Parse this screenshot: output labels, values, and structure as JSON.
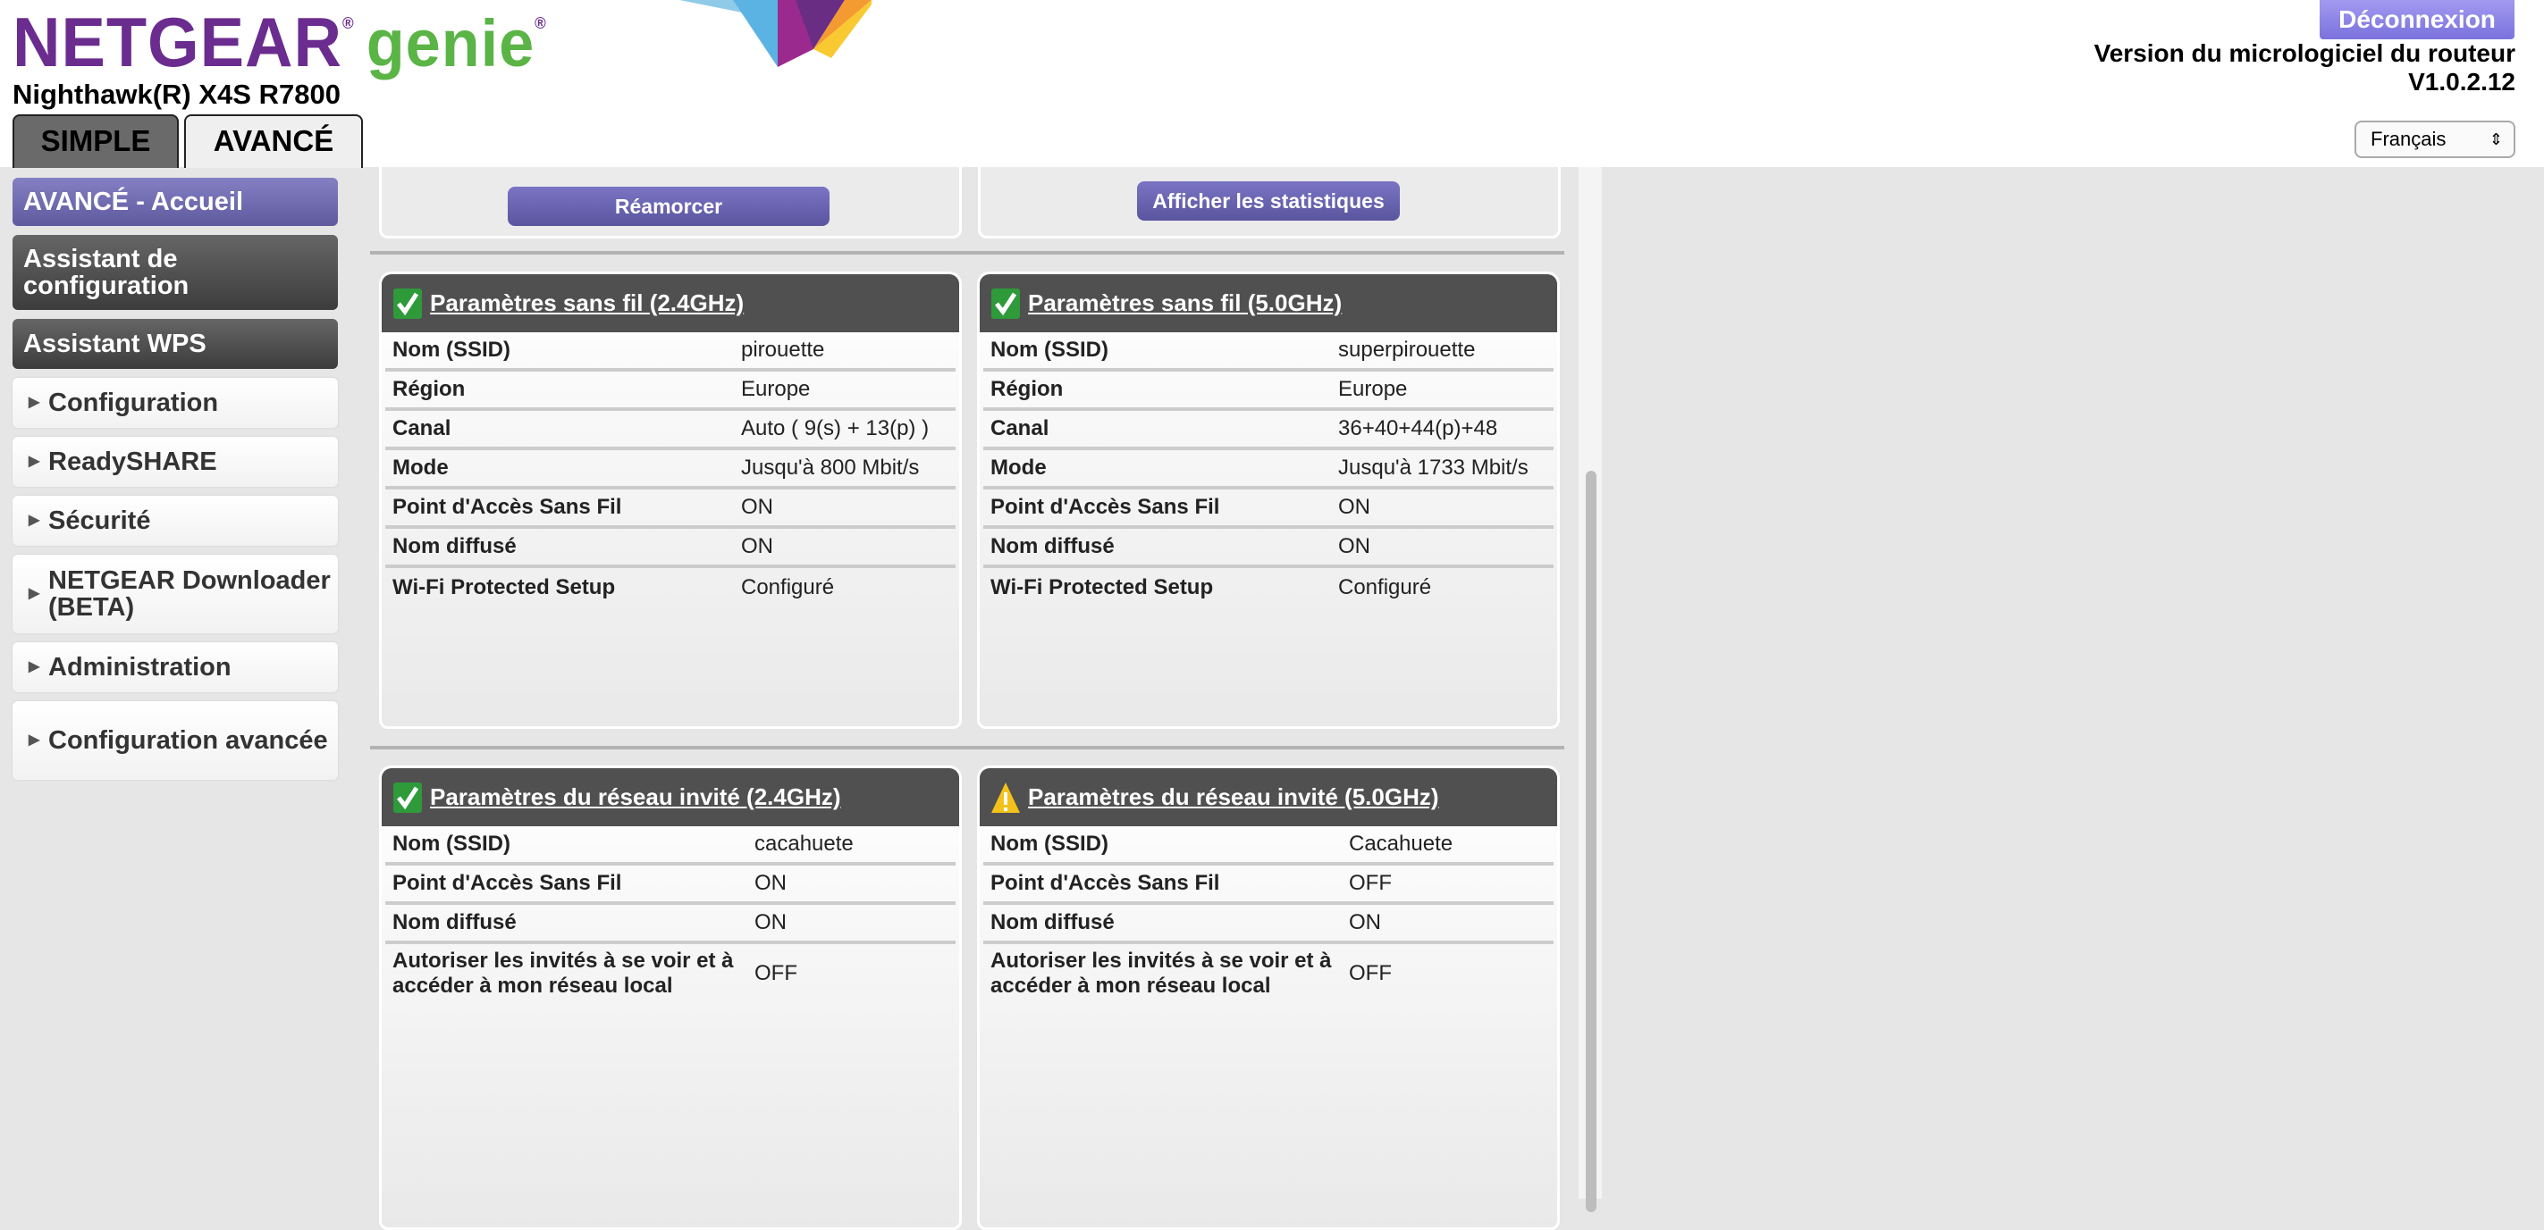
{
  "header": {
    "logo_brand": "NETGEAR",
    "logo_product": "genie",
    "model": "Nighthawk(R) X4S R7800",
    "tabs": [
      "SIMPLE",
      "AVANCÉ"
    ],
    "logout": "Déconnexion",
    "firmware_label": "Version du micrologiciel du routeur",
    "firmware_version": "V1.0.2.12",
    "language": "Français"
  },
  "sidebar": {
    "items": [
      {
        "label": "AVANCÉ - Accueil",
        "style": "active"
      },
      {
        "label": "Assistant de configuration",
        "style": "dark"
      },
      {
        "label": "Assistant WPS",
        "style": "dark"
      },
      {
        "label": "Configuration",
        "style": "light"
      },
      {
        "label": "ReadySHARE",
        "style": "light"
      },
      {
        "label": "Sécurité",
        "style": "light"
      },
      {
        "label": "NETGEAR Downloader (BETA)",
        "style": "light"
      },
      {
        "label": "Administration",
        "style": "light"
      },
      {
        "label": "Configuration avancée",
        "style": "light"
      }
    ]
  },
  "main": {
    "reboot_button": "Réamorcer",
    "stats_button": "Afficher les statistiques",
    "panels": [
      {
        "title": "Paramètres sans fil (2.4GHz)",
        "status": "ok",
        "rows": [
          [
            "Nom (SSID)",
            "pirouette"
          ],
          [
            "Région",
            "Europe"
          ],
          [
            "Canal",
            "Auto ( 9(s) + 13(p) )"
          ],
          [
            "Mode",
            "Jusqu'à 800 Mbit/s"
          ],
          [
            "Point d'Accès Sans Fil",
            "ON"
          ],
          [
            "Nom diffusé",
            "ON"
          ],
          [
            "Wi-Fi Protected Setup",
            "Configuré"
          ]
        ]
      },
      {
        "title": "Paramètres sans fil (5.0GHz)",
        "status": "ok",
        "rows": [
          [
            "Nom (SSID)",
            "superpirouette"
          ],
          [
            "Région",
            "Europe"
          ],
          [
            "Canal",
            "36+40+44(p)+48"
          ],
          [
            "Mode",
            "Jusqu'à 1733 Mbit/s"
          ],
          [
            "Point d'Accès Sans Fil",
            "ON"
          ],
          [
            "Nom diffusé",
            "ON"
          ],
          [
            "Wi-Fi Protected Setup",
            "Configuré"
          ]
        ]
      },
      {
        "title": "Paramètres du réseau invité (2.4GHz)",
        "status": "ok",
        "rows": [
          [
            "Nom (SSID)",
            "cacahuete"
          ],
          [
            "Point d'Accès Sans Fil",
            "ON"
          ],
          [
            "Nom diffusé",
            "ON"
          ],
          [
            "Autoriser les invités à se voir et à accéder à mon réseau local",
            "OFF"
          ]
        ]
      },
      {
        "title": "Paramètres du réseau invité (5.0GHz)",
        "status": "warning",
        "rows": [
          [
            "Nom (SSID)",
            "Cacahuete"
          ],
          [
            "Point d'Accès Sans Fil",
            "OFF"
          ],
          [
            "Nom diffusé",
            "ON"
          ],
          [
            "Autoriser les invités à se voir et à accéder à mon réseau local",
            "OFF"
          ]
        ]
      }
    ]
  },
  "colors": {
    "brand_purple": "#6b2c8f",
    "genie_green": "#5ab446",
    "button_purple": "#6a64b4",
    "panel_header": "#505050",
    "ok_green": "#2e9a3a",
    "warning_yellow": "#f2c21b"
  }
}
